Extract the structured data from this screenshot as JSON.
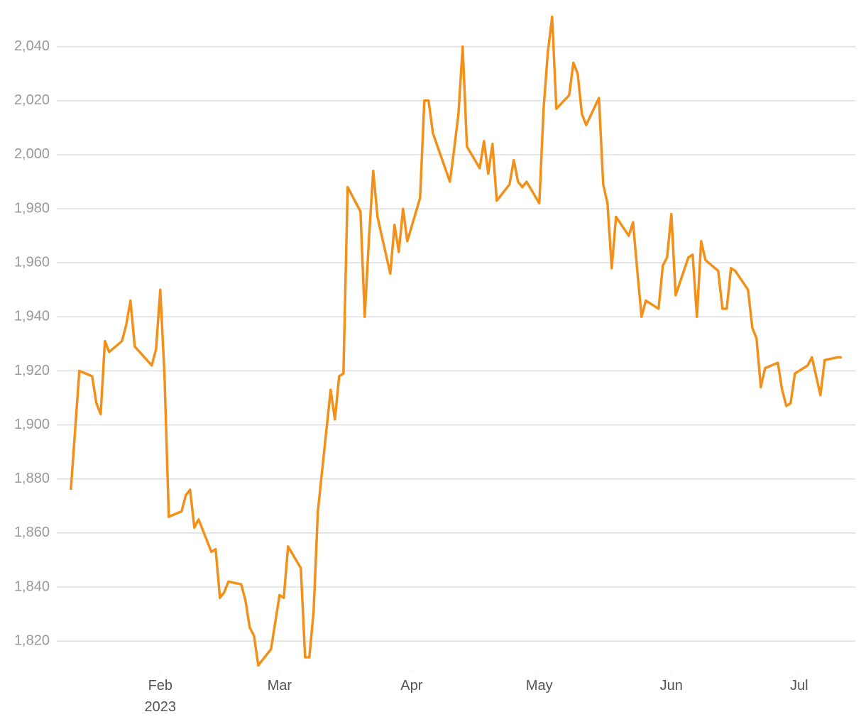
{
  "chart_data": {
    "type": "line",
    "x": [
      11,
      13,
      16,
      17,
      18,
      19,
      20,
      23,
      24,
      25,
      26,
      30,
      31,
      32,
      33,
      34,
      37,
      38,
      39,
      40,
      41,
      44,
      45,
      46,
      47,
      48,
      51,
      52,
      53,
      54,
      55,
      58,
      59,
      60,
      61,
      62,
      65,
      66,
      67,
      68,
      69,
      72,
      73,
      74,
      75,
      76,
      79,
      80,
      81,
      82,
      83,
      86,
      87,
      88,
      89,
      90,
      93,
      94,
      95,
      96,
      100,
      101,
      102,
      103,
      104,
      107,
      108,
      109,
      110,
      111,
      114,
      115,
      116,
      117,
      118,
      121,
      122,
      123,
      124,
      125,
      128,
      129,
      130,
      131,
      132,
      135,
      136,
      137,
      138,
      139,
      142,
      143,
      144,
      145,
      146,
      149,
      150,
      151,
      152,
      153,
      156,
      157,
      158,
      159,
      160,
      163,
      164,
      165,
      166,
      167,
      170,
      171,
      172,
      173,
      174,
      177,
      178,
      179,
      180,
      181,
      184,
      185,
      186,
      187,
      188,
      191,
      192
    ],
    "series": [
      {
        "color": "#f39019",
        "values": [
          1876,
          1920,
          1918,
          1908,
          1904,
          1931,
          1927,
          1931,
          1937,
          1946,
          1929,
          1922,
          1928,
          1950,
          1918,
          1866,
          1868,
          1874,
          1876,
          1862,
          1865,
          1853,
          1854,
          1836,
          1838,
          1842,
          1841,
          1835,
          1825,
          1822,
          1811,
          1817,
          1827,
          1837,
          1836,
          1855,
          1847,
          1814,
          1814,
          1831,
          1868,
          1913,
          1902,
          1918,
          1919,
          1988,
          1979,
          1940,
          1969,
          1994,
          1977,
          1956,
          1974,
          1964,
          1980,
          1968,
          1984,
          2020,
          2020,
          2008,
          1990,
          2002,
          2015,
          2040,
          2003,
          1995,
          2005,
          1993,
          2004,
          1983,
          1989,
          1998,
          1990,
          1988,
          1990,
          1982,
          2017,
          2038,
          2051,
          2017,
          2022,
          2034,
          2030,
          2015,
          2011,
          2021,
          1989,
          1982,
          1958,
          1977,
          1970,
          1975,
          1957,
          1940,
          1946,
          1943,
          1959,
          1962,
          1978,
          1948,
          1962,
          1963,
          1940,
          1968,
          1961,
          1957,
          1943,
          1943,
          1958,
          1957,
          1950,
          1936,
          1932,
          1914,
          1921,
          1923,
          1913,
          1907,
          1908,
          1919,
          1922,
          1925,
          1918,
          1911,
          1924,
          1925,
          1925
        ]
      }
    ],
    "xlim": [
      7.7,
      195.2
    ],
    "xticks": [
      {
        "value": 32,
        "label": "Feb 2023"
      },
      {
        "value": 60,
        "label": "Mar"
      },
      {
        "value": 91,
        "label": "Apr"
      },
      {
        "value": 121,
        "label": "May"
      },
      {
        "value": 152,
        "label": "Jun"
      },
      {
        "value": 182,
        "label": "Jul"
      }
    ],
    "ylim": [
      1809,
      2052
    ],
    "yticks": [
      {
        "value": 1820,
        "label": "1,820"
      },
      {
        "value": 1840,
        "label": "1,840"
      },
      {
        "value": 1860,
        "label": "1,860"
      },
      {
        "value": 1880,
        "label": "1,880"
      },
      {
        "value": 1900,
        "label": "1,900"
      },
      {
        "value": 1920,
        "label": "1,920"
      },
      {
        "value": 1940,
        "label": "1,940"
      },
      {
        "value": 1960,
        "label": "1,960"
      },
      {
        "value": 1980,
        "label": "1,980"
      },
      {
        "value": 2000,
        "label": "2,000"
      },
      {
        "value": 2020,
        "label": "2,020"
      },
      {
        "value": 2040,
        "label": "2,040"
      }
    ],
    "grid": true
  }
}
